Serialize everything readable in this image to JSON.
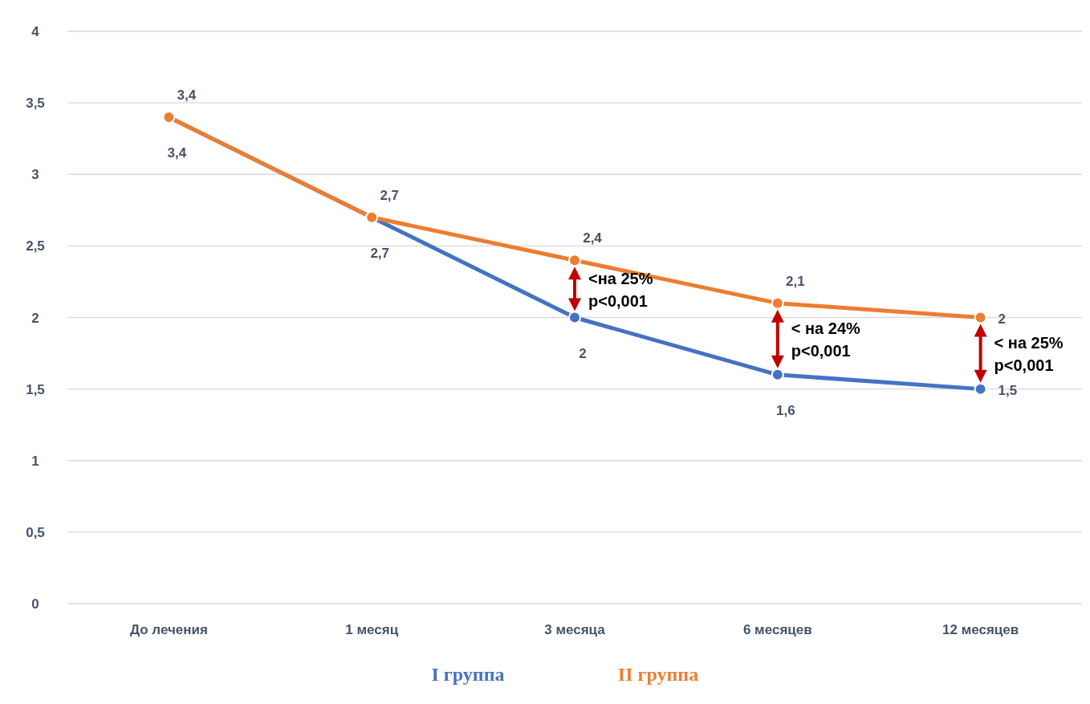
{
  "chart_data": {
    "type": "line",
    "categories": [
      "До лечения",
      "1 месяц",
      "3 месяца",
      "6 месяцев",
      "12 месяцев"
    ],
    "series": [
      {
        "name": "I группа",
        "color": "#4472c4",
        "values": [
          3.4,
          2.7,
          2,
          1.6,
          1.5
        ],
        "value_labels": [
          "3,4",
          "2,7",
          "2",
          "1,6",
          "1,5"
        ]
      },
      {
        "name": "II группа",
        "color": "#ed7d31",
        "values": [
          3.4,
          2.7,
          2.4,
          2.1,
          2
        ],
        "value_labels": [
          "3,4",
          "2,7",
          "2,4",
          "2,1",
          "2"
        ]
      }
    ],
    "ylim": [
      0,
      4
    ],
    "yticks": [
      0,
      {
        "value": 0.5,
        "label": "0,5"
      },
      1,
      {
        "value": 1.5,
        "label": "1,5"
      },
      2,
      {
        "value": 2.5,
        "label": "2,5"
      },
      3,
      {
        "value": 3.5,
        "label": "3,5"
      },
      4
    ],
    "grid": "y",
    "legend": "bottom",
    "marker": "circle",
    "line_style": "solid",
    "annotations": [
      "<на 25%\np<0,001",
      "< на 24%\np<0,001",
      "< на 25%\np<0,001"
    ]
  }
}
